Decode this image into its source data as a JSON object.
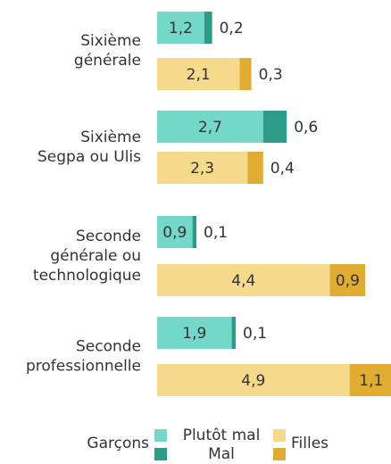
{
  "chart_data": {
    "type": "stacked-bar-horizontal",
    "categories": [
      [
        "Sixième",
        "générale"
      ],
      [
        "Sixième",
        "Segpa ou Ulis"
      ],
      [
        "Seconde",
        "générale ou",
        "technologique"
      ],
      [
        "Seconde",
        "professionnelle"
      ]
    ],
    "segments": [
      "Plutôt mal",
      "Mal"
    ],
    "groups": [
      {
        "name": "Garçons",
        "label_color": "#3fc2b1",
        "series": [
          {
            "color": "#73d7c9",
            "values": [
              1.2,
              2.7,
              0.9,
              1.9
            ],
            "value_labels": [
              "1,2",
              "2,7",
              "0,9",
              "1,9"
            ]
          },
          {
            "color": "#2a9c87",
            "values": [
              0.2,
              0.6,
              0.1,
              0.1
            ],
            "value_labels": [
              "0,2",
              "0,6",
              "0,1",
              "0,1"
            ]
          }
        ]
      },
      {
        "name": "Filles",
        "label_color": "#e2af3a",
        "series": [
          {
            "color": "#f6da8c",
            "values": [
              2.1,
              2.3,
              4.4,
              4.9
            ],
            "value_labels": [
              "2,1",
              "2,3",
              "4,4",
              "4,9"
            ]
          },
          {
            "color": "#e0ad32",
            "values": [
              0.3,
              0.4,
              0.9,
              1.1
            ],
            "value_labels": [
              "0,3",
              "0,4",
              "0,9",
              "1,1"
            ]
          }
        ]
      }
    ]
  }
}
